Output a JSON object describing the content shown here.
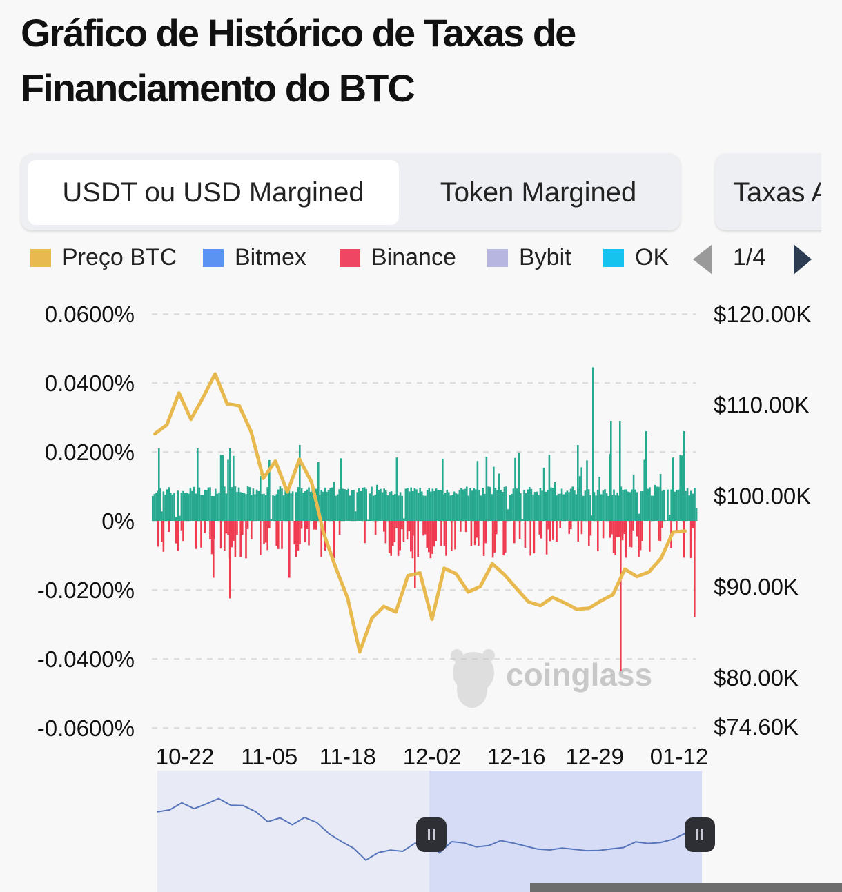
{
  "header": {
    "title": "Gráfico de Histórico de Taxas de Financiamento do BTC"
  },
  "tabs": [
    {
      "label": "USDT ou USD Margined",
      "active": true
    },
    {
      "label": "Token Margined",
      "active": false
    },
    {
      "label": "Taxas A",
      "active": false
    }
  ],
  "legend": {
    "items": [
      {
        "label": "Preço BTC",
        "color": "#e8b94e"
      },
      {
        "label": "Bitmex",
        "color": "#5b93f3"
      },
      {
        "label": "Binance",
        "color": "#ef4763"
      },
      {
        "label": "Bybit",
        "color": "#b6b6e1"
      },
      {
        "label": "OK",
        "color": "#15c3ee"
      }
    ],
    "page_indicator": "1/4",
    "prev_icon": "triangle-left-icon",
    "next_icon": "triangle-right-icon"
  },
  "watermark": {
    "text": "coinglass",
    "icon": "coinglass-mascot-icon"
  },
  "colors": {
    "positive": "#26a98f",
    "negative": "#ef3b50",
    "price": "#e8b94e",
    "navigator_line": "#5775ba"
  },
  "chart_data": {
    "type": "bar",
    "title": "Gráfico de Histórico de Taxas de Financiamento do BTC",
    "x_tick_labels": [
      "10-22",
      "11-05",
      "11-18",
      "12-02",
      "12-16",
      "12-29",
      "01-12"
    ],
    "left_axis": {
      "tick_labels": [
        "0.0600%",
        "0.0400%",
        "0.0200%",
        "0%",
        "-0.0200%",
        "-0.0400%",
        "-0.0600%"
      ],
      "tick_values": [
        0.06,
        0.04,
        0.02,
        0,
        -0.02,
        -0.04,
        -0.06
      ],
      "ylim": [
        -0.06,
        0.06
      ],
      "unit": "%"
    },
    "right_axis": {
      "tick_labels": [
        "$120.00K",
        "$110.00K",
        "$100.00K",
        "$90.00K",
        "$80.00K",
        "$74.60K"
      ],
      "tick_values": [
        120000,
        110000,
        100000,
        90000,
        80000,
        74600
      ],
      "ylim": [
        74600,
        120000
      ]
    },
    "grid": true,
    "series": [
      {
        "name": "Preço BTC",
        "type": "line",
        "axis": "right",
        "x": [
          "10-17",
          "10-19",
          "10-21",
          "10-23",
          "10-25",
          "10-27",
          "10-29",
          "10-31",
          "11-02",
          "11-04",
          "11-06",
          "11-08",
          "11-10",
          "11-12",
          "11-14",
          "11-16",
          "11-18",
          "11-20",
          "11-22",
          "11-24",
          "11-26",
          "11-28",
          "11-30",
          "12-02",
          "12-04",
          "12-06",
          "12-08",
          "12-10",
          "12-12",
          "12-14",
          "12-16",
          "12-18",
          "12-20",
          "12-22",
          "12-24",
          "12-26",
          "12-28",
          "12-30",
          "01-01",
          "01-03",
          "01-05",
          "01-07",
          "01-09",
          "01-11",
          "01-13"
        ],
        "values": [
          106800,
          107800,
          111300,
          108400,
          110800,
          113400,
          110100,
          109900,
          107000,
          101900,
          103800,
          100400,
          104000,
          101500,
          95900,
          92100,
          88700,
          82800,
          86500,
          87800,
          87200,
          91200,
          91500,
          86400,
          92000,
          91400,
          89400,
          90000,
          92500,
          91300,
          89800,
          88300,
          87900,
          88800,
          88200,
          87500,
          87600,
          88400,
          89100,
          91900,
          91100,
          91600,
          93100,
          96000,
          96100
        ]
      },
      {
        "name": "Binance",
        "type": "bar",
        "axis": "left",
        "summary": {
          "typical_positive": 0.01,
          "peak_positive": 0.0445,
          "peak_positive_date": "12-28",
          "peak_negative": -0.0435,
          "peak_negative_date": "01-05"
        }
      }
    ],
    "navigator": {
      "type": "area",
      "selected_range": [
        "12-02",
        "01-13"
      ]
    }
  }
}
